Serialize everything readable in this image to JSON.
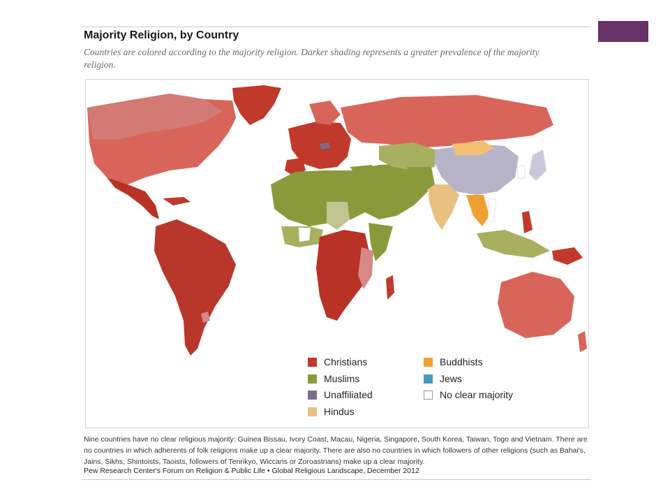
{
  "slide": {
    "accent_color": "#653366"
  },
  "figure": {
    "title": "Majority Religion, by Country",
    "subtitle": "Countries are colored according to the majority religion. Darker shading represents a greater prevalence of the majority religion.",
    "footnote": "Nine countries have no clear religious majority: Guinea Bissau, Ivory Coast, Macau, Nigeria, Singapore, South Korea, Taiwan, Togo and Vietnam. There are no countries in which adherents of folk religions make up a clear majority. There are also no countries in which followers of other religions (such as Bahai's, Jains, Sikhs, Shintoists, Taoists, followers of Tenrikyo, Wiccans or Zoroastrians) make up a clear majority.",
    "source": "Pew Research Center's Forum on Religion & Public Life • Global Religious Landscape, December 2012"
  },
  "legend": [
    {
      "label": "Christians",
      "color": "#c0392b"
    },
    {
      "label": "Buddhists",
      "color": "#f0a032"
    },
    {
      "label": "Muslims",
      "color": "#8a9a3a"
    },
    {
      "label": "Jews",
      "color": "#4a9ab8"
    },
    {
      "label": "Unaffiliated",
      "color": "#7a6e8a"
    },
    {
      "label": "No clear majority",
      "color": "#ffffff"
    },
    {
      "label": "Hindus",
      "color": "#e8c080"
    }
  ]
}
